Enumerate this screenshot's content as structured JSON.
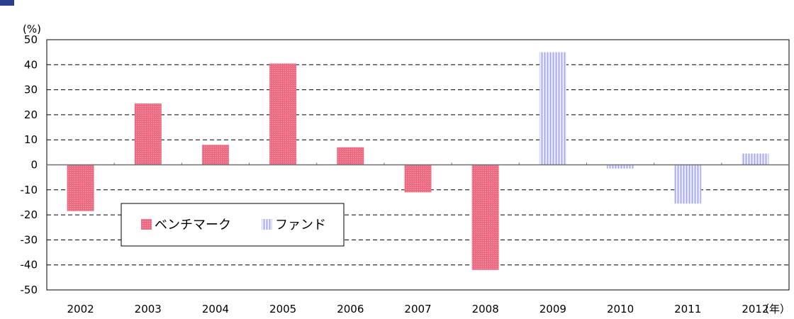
{
  "chart_data": {
    "type": "bar",
    "y_unit_label": "(%)",
    "x_unit_label": "（年）",
    "categories": [
      "2002",
      "2003",
      "2004",
      "2005",
      "2006",
      "2007",
      "2008",
      "2009",
      "2010",
      "2011",
      "2012"
    ],
    "series": [
      {
        "name": "ベンチマーク",
        "color": "#ee6e86",
        "values": [
          -18.5,
          24.5,
          8,
          40.5,
          7,
          -11,
          -42,
          null,
          null,
          null,
          null
        ]
      },
      {
        "name": "ファンド",
        "color": "#b8bcf4",
        "values": [
          null,
          null,
          null,
          null,
          null,
          null,
          null,
          45,
          -1.5,
          -15.5,
          4.5
        ]
      }
    ],
    "y_ticks": [
      50,
      40,
      30,
      20,
      10,
      0,
      -10,
      -20,
      -30,
      -40,
      -50
    ],
    "ylim": [
      -50,
      50
    ],
    "grid": true,
    "grid_style": "dashed",
    "legend_position": "inside-lower-left"
  }
}
